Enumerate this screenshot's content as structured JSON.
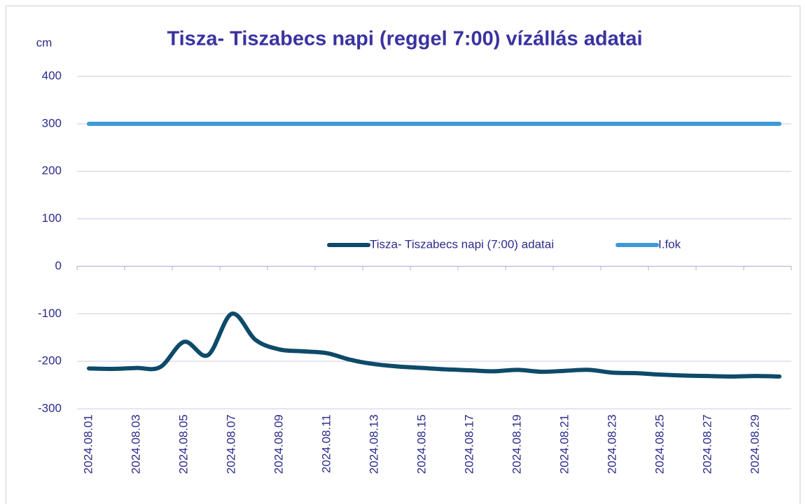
{
  "chart_data": {
    "type": "line",
    "title": "Tisza- Tiszabecs napi (reggel 7:00) vízállás adatai",
    "y_axis_label": "cm",
    "categories": [
      "2024.08.01",
      null,
      "2024.08.03",
      null,
      "2024.08.05",
      null,
      "2024.08.07",
      null,
      "2024.08.09",
      null,
      "2024.08.11",
      null,
      "2024.08.13",
      null,
      "2024.08.15",
      null,
      "2024.08.17",
      null,
      "2024.08.19",
      null,
      "2024.08.21",
      null,
      "2024.08.23",
      null,
      "2024.08.25",
      null,
      "2024.08.27",
      null,
      "2024.08.29",
      null
    ],
    "series": [
      {
        "name": "Tisza- Tiszabecs napi (7:00) adatai",
        "color": "#0e4a69",
        "values": [
          -215,
          -216,
          -214,
          -212,
          -159,
          -187,
          -100,
          -155,
          -175,
          -179,
          -183,
          -197,
          -206,
          -211,
          -214,
          -217,
          -219,
          -221,
          -218,
          -222,
          -220,
          -218,
          -224,
          -225,
          -228,
          -230,
          -231,
          -232,
          -231,
          -232
        ]
      },
      {
        "name": "I.fok",
        "color": "#3d9ad6",
        "values": [
          300,
          300,
          300,
          300,
          300,
          300,
          300,
          300,
          300,
          300,
          300,
          300,
          300,
          300,
          300,
          300,
          300,
          300,
          300,
          300,
          300,
          300,
          300,
          300,
          300,
          300,
          300,
          300,
          300,
          300
        ]
      }
    ],
    "ylim": [
      -300,
      400
    ],
    "yticks": [
      -300,
      -200,
      -100,
      0,
      100,
      200,
      300,
      400
    ],
    "grid": true,
    "smooth": true
  }
}
